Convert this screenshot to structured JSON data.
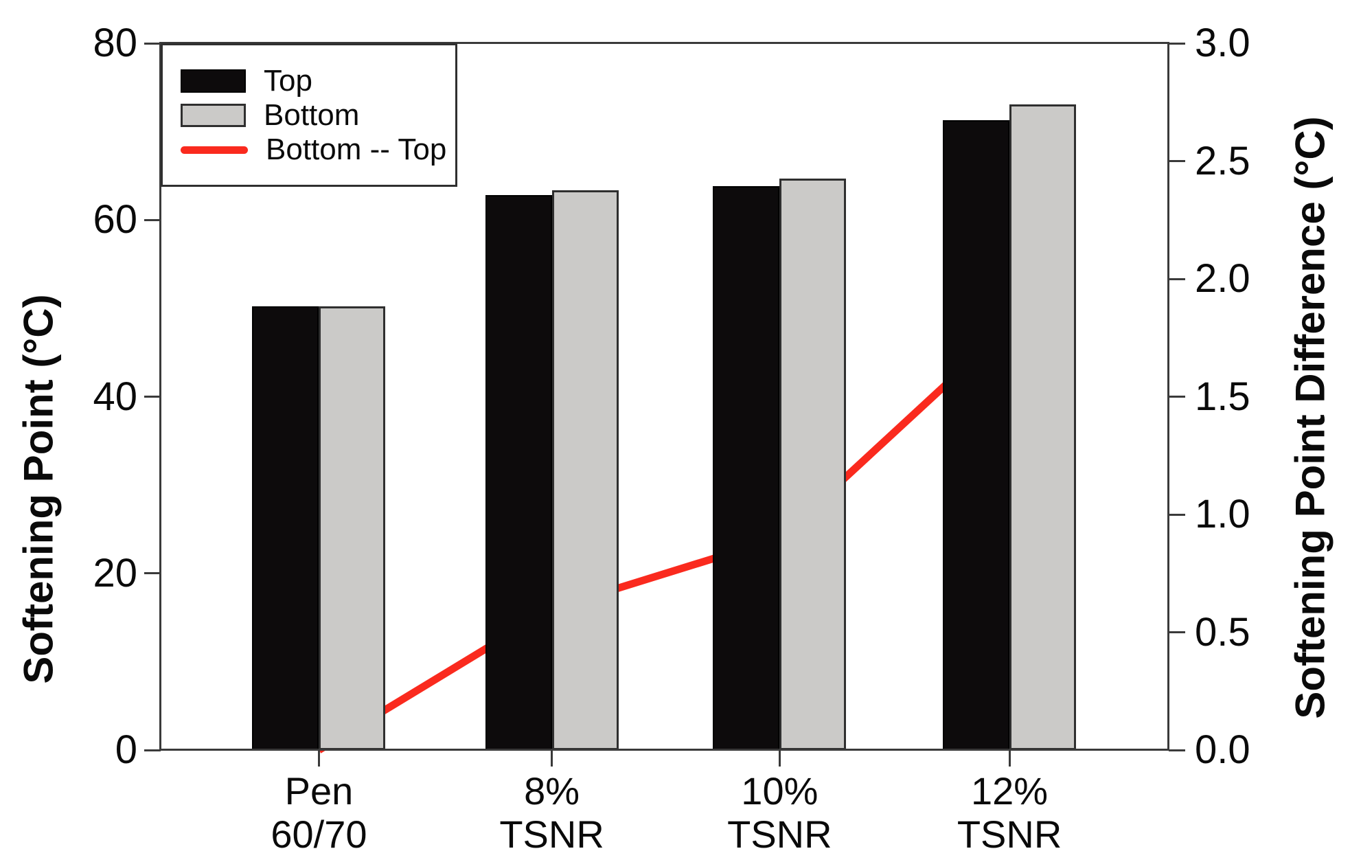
{
  "chart_data": {
    "type": "bar+line",
    "title": "",
    "categories": [
      "Pen 60/70",
      "8% TSNR",
      "10% TSNR",
      "12% TSNR"
    ],
    "category_labels_two_line": [
      [
        "Pen",
        "60/70"
      ],
      [
        "8%",
        "TSNR"
      ],
      [
        "10%",
        "TSNR"
      ],
      [
        "12%",
        "TSNR"
      ]
    ],
    "series": [
      {
        "name": "Top",
        "type": "bar",
        "axis": "left",
        "color": "#0d0b0c",
        "values": [
          50.2,
          62.8,
          63.8,
          71.3
        ]
      },
      {
        "name": "Bottom",
        "type": "bar",
        "axis": "left",
        "color": "#cbcac8",
        "values": [
          50.2,
          63.4,
          64.7,
          73.1
        ]
      },
      {
        "name": "Bottom -- Top",
        "type": "line",
        "axis": "right",
        "color": "#fa2a1e",
        "values": [
          0.0,
          0.6,
          0.9,
          1.8
        ]
      }
    ],
    "left_axis": {
      "label": "Softening Point (°C)",
      "min": 0,
      "max": 80,
      "ticks": [
        0,
        20,
        40,
        60,
        80
      ],
      "tick_labels": [
        "0",
        "20",
        "40",
        "60",
        "80"
      ]
    },
    "right_axis": {
      "label": "Softening Point Difference (°C)",
      "min": 0.0,
      "max": 3.0,
      "ticks": [
        0,
        0.5,
        1,
        1.5,
        2,
        2.5,
        3
      ],
      "tick_labels": [
        "0.0",
        "0.5",
        "1.0",
        "1.5",
        "2.0",
        "2.5",
        "3.0"
      ]
    },
    "legend": {
      "position": "top-left",
      "entries": [
        "Top",
        "Bottom",
        "Bottom -- Top"
      ]
    },
    "grid": false
  },
  "colors": {
    "bar_top": "#0d0b0c",
    "bar_bottom": "#cbcac8",
    "diff_line": "#fa2a1e",
    "axis": "#3a3a3a",
    "text": "#0a0a0a",
    "background": "#ffffff"
  }
}
